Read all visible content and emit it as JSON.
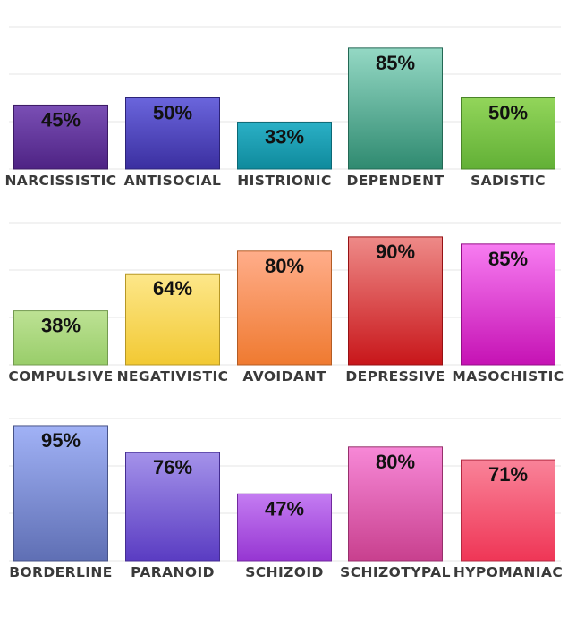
{
  "chart_data": [
    {
      "type": "bar",
      "categories": [
        "NARCISSISTIC",
        "ANTISOCIAL",
        "HISTRIONIC",
        "DEPENDENT",
        "SADISTIC"
      ],
      "values": [
        45,
        50,
        33,
        85,
        50
      ],
      "value_labels": [
        "45%",
        "50%",
        "33%",
        "85%",
        "50%"
      ],
      "colors": [
        [
          "#7a4fb5",
          "#4e2384"
        ],
        [
          "#6a65dc",
          "#3b2fa0"
        ],
        [
          "#2bb0c6",
          "#0f8a9c"
        ],
        [
          "#94d8c4",
          "#2f8a70"
        ],
        [
          "#92d55a",
          "#62b036"
        ]
      ],
      "ylim": [
        0,
        100
      ],
      "grid": true
    },
    {
      "type": "bar",
      "categories": [
        "COMPULSIVE",
        "NEGATIVISTIC",
        "AVOIDANT",
        "DEPRESSIVE",
        "MASOCHISTIC"
      ],
      "values": [
        38,
        64,
        80,
        90,
        85
      ],
      "value_labels": [
        "38%",
        "64%",
        "80%",
        "90%",
        "85%"
      ],
      "colors": [
        [
          "#bde294",
          "#99cd6a"
        ],
        [
          "#fde78a",
          "#f2c933"
        ],
        [
          "#ffad8a",
          "#ef7a30"
        ],
        [
          "#ee8a88",
          "#c8161a"
        ],
        [
          "#f77cf1",
          "#c512b4"
        ]
      ],
      "ylim": [
        0,
        100
      ],
      "grid": true
    },
    {
      "type": "bar",
      "categories": [
        "BORDERLINE",
        "PARANOID",
        "SCHIZOID",
        "SCHIZOTYPAL",
        "HYPOMANIAC"
      ],
      "values": [
        95,
        76,
        47,
        80,
        71
      ],
      "value_labels": [
        "95%",
        "76%",
        "47%",
        "80%",
        "71%"
      ],
      "colors": [
        [
          "#a1b2f6",
          "#5f6fb4"
        ],
        [
          "#a492ea",
          "#5a3cc2"
        ],
        [
          "#c47cf2",
          "#9636d2"
        ],
        [
          "#f788d7",
          "#c8408e"
        ],
        [
          "#f98399",
          "#ef3656"
        ]
      ],
      "ylim": [
        0,
        100
      ],
      "grid": true
    }
  ]
}
